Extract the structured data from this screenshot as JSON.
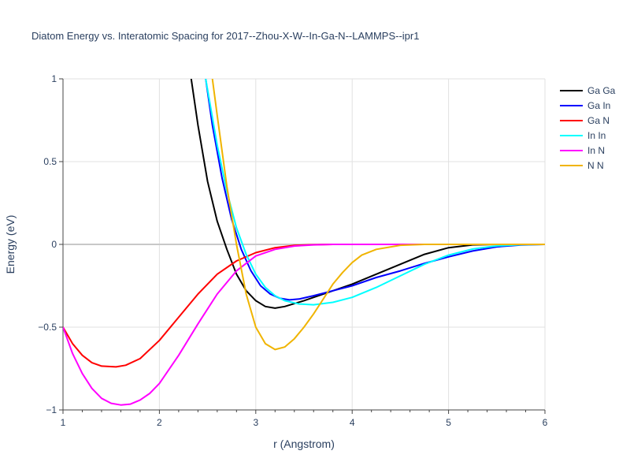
{
  "chart_data": {
    "type": "line",
    "title": "Diatom Energy vs. Interatomic Spacing for 2017--Zhou-X-W--In-Ga-N--LAMMPS--ipr1",
    "xlabel": "r (Angstrom)",
    "ylabel": "Energy (eV)",
    "xlim": [
      1,
      6
    ],
    "ylim": [
      -1,
      1
    ],
    "x_ticks": [
      "1",
      "2",
      "3",
      "4",
      "5",
      "6"
    ],
    "y_ticks": [
      "−1",
      "−0.5",
      "0",
      "0.5",
      "1"
    ],
    "x_tick_values": [
      1,
      2,
      3,
      4,
      5,
      6
    ],
    "y_tick_values": [
      -1,
      -0.5,
      0,
      0.5,
      1
    ],
    "grid": true,
    "legend_position": "top-right",
    "series": [
      {
        "name": "Ga Ga",
        "color": "#000000",
        "x": [
          2.33,
          2.4,
          2.5,
          2.6,
          2.7,
          2.8,
          2.9,
          3.0,
          3.1,
          3.2,
          3.3,
          3.5,
          3.75,
          4.0,
          4.25,
          4.5,
          4.75,
          5.0,
          5.25,
          5.5,
          6.0
        ],
        "y": [
          1.0,
          0.72,
          0.38,
          0.14,
          -0.03,
          -0.18,
          -0.28,
          -0.34,
          -0.375,
          -0.385,
          -0.375,
          -0.34,
          -0.29,
          -0.24,
          -0.18,
          -0.12,
          -0.06,
          -0.02,
          -0.003,
          0.0,
          0.0
        ]
      },
      {
        "name": "Ga In",
        "color": "#0000ff",
        "x": [
          2.48,
          2.55,
          2.65,
          2.75,
          2.85,
          2.95,
          3.05,
          3.15,
          3.25,
          3.35,
          3.45,
          3.6,
          3.8,
          4.0,
          4.25,
          4.5,
          4.75,
          5.0,
          5.25,
          5.5,
          5.75,
          6.0
        ],
        "y": [
          1.0,
          0.72,
          0.4,
          0.15,
          -0.03,
          -0.16,
          -0.25,
          -0.3,
          -0.325,
          -0.335,
          -0.33,
          -0.31,
          -0.28,
          -0.25,
          -0.2,
          -0.16,
          -0.115,
          -0.075,
          -0.04,
          -0.015,
          -0.004,
          0.0
        ]
      },
      {
        "name": "Ga N",
        "color": "#ff0000",
        "x": [
          1.0,
          1.1,
          1.2,
          1.3,
          1.4,
          1.55,
          1.65,
          1.8,
          2.0,
          2.2,
          2.4,
          2.6,
          2.8,
          3.0,
          3.2,
          3.4,
          3.6,
          3.8,
          4.0,
          6.0
        ],
        "y": [
          -0.5,
          -0.6,
          -0.67,
          -0.715,
          -0.735,
          -0.74,
          -0.73,
          -0.69,
          -0.58,
          -0.44,
          -0.3,
          -0.18,
          -0.1,
          -0.05,
          -0.02,
          -0.006,
          -0.002,
          0.0,
          0.0,
          0.0
        ]
      },
      {
        "name": "In In",
        "color": "#00ffff",
        "x": [
          2.48,
          2.6,
          2.7,
          2.8,
          2.9,
          3.0,
          3.1,
          3.2,
          3.3,
          3.45,
          3.6,
          3.8,
          4.0,
          4.25,
          4.5,
          4.75,
          5.0,
          5.25,
          5.5,
          5.75,
          6.0
        ],
        "y": [
          1.0,
          0.6,
          0.32,
          0.1,
          -0.06,
          -0.18,
          -0.26,
          -0.31,
          -0.34,
          -0.36,
          -0.365,
          -0.35,
          -0.32,
          -0.26,
          -0.19,
          -0.12,
          -0.065,
          -0.028,
          -0.009,
          -0.002,
          0.0
        ]
      },
      {
        "name": "In N",
        "color": "#ff00ff",
        "x": [
          1.0,
          1.1,
          1.2,
          1.3,
          1.4,
          1.5,
          1.6,
          1.7,
          1.8,
          1.9,
          2.0,
          2.2,
          2.4,
          2.6,
          2.8,
          3.0,
          3.2,
          3.4,
          3.6,
          3.8,
          4.0,
          6.0
        ],
        "y": [
          -0.5,
          -0.66,
          -0.78,
          -0.87,
          -0.93,
          -0.96,
          -0.97,
          -0.965,
          -0.94,
          -0.9,
          -0.84,
          -0.67,
          -0.48,
          -0.3,
          -0.16,
          -0.07,
          -0.03,
          -0.01,
          -0.003,
          0.0,
          0.0,
          0.0
        ]
      },
      {
        "name": "N N",
        "color": "#f0b400",
        "x": [
          2.55,
          2.6,
          2.7,
          2.8,
          2.9,
          3.0,
          3.1,
          3.2,
          3.3,
          3.4,
          3.5,
          3.6,
          3.7,
          3.8,
          3.9,
          4.0,
          4.1,
          4.25,
          4.5,
          4.75,
          5.0,
          6.0
        ],
        "y": [
          1.0,
          0.78,
          0.35,
          0.0,
          -0.3,
          -0.5,
          -0.6,
          -0.635,
          -0.62,
          -0.57,
          -0.5,
          -0.42,
          -0.33,
          -0.24,
          -0.17,
          -0.11,
          -0.065,
          -0.03,
          -0.005,
          0.0,
          0.0,
          0.0
        ]
      }
    ]
  }
}
